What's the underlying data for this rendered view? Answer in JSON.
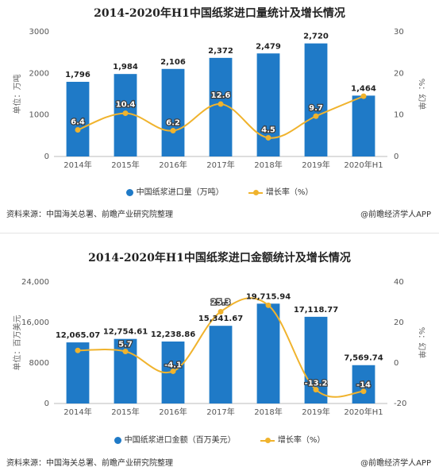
{
  "chart_data": [
    {
      "type": "bar+line",
      "title": "2014-2020年H1中国纸浆进口量统计及增长情况",
      "categories": [
        "2014年",
        "2015年",
        "2016年",
        "2017年",
        "2018年",
        "2019年",
        "2020年H1"
      ],
      "ylabel": "单位：万吨",
      "y2label": "%：幻单",
      "ylim": [
        0,
        3000
      ],
      "yticks": [
        "0",
        "1000",
        "2000",
        "3000"
      ],
      "y2lim": [
        0,
        30
      ],
      "y2ticks": [
        "0",
        "10",
        "20",
        "30"
      ],
      "series": [
        {
          "name": "中国纸浆进口量（万吨）",
          "type": "bar",
          "color": "#1f7ac7",
          "values": [
            1796,
            1984,
            2106,
            2372,
            2479,
            2720,
            1464
          ],
          "labels": [
            "1,796",
            "1,984",
            "2,106",
            "2,372",
            "2,479",
            "2,720",
            "1,464"
          ]
        },
        {
          "name": "增长率（%）",
          "type": "line",
          "axis": "right",
          "color": "#f0b32d",
          "x_indices": [
            0,
            1,
            2,
            3,
            4,
            5,
            6
          ],
          "values": [
            6.4,
            10.4,
            6.2,
            12.6,
            4.5,
            9.7,
            14.5
          ],
          "labels": [
            "6.4",
            "10.4",
            "6.2",
            "12.6",
            "4.5",
            "9.7",
            ""
          ]
        }
      ],
      "legend": "bottom",
      "grid": false
    },
    {
      "type": "bar+line",
      "title": "2014-2020年H1中国纸浆进口金额统计及增长情况",
      "categories": [
        "2014年",
        "2015年",
        "2016年",
        "2017年",
        "2018年",
        "2019年",
        "2020年H1"
      ],
      "ylabel": "单位：百万美元",
      "y2label": "%：幻单",
      "ylim": [
        0,
        24000
      ],
      "yticks": [
        "0",
        "8000",
        "16,000",
        "24,000"
      ],
      "y2lim": [
        -20,
        40
      ],
      "y2ticks": [
        "-20",
        "0",
        "20",
        "40"
      ],
      "series": [
        {
          "name": "中国纸浆进口金额（百万美元）",
          "type": "bar",
          "color": "#1f7ac7",
          "values": [
            12065.07,
            12754.61,
            12238.86,
            15341.67,
            19715.94,
            17118.77,
            7569.74
          ],
          "labels": [
            "12,065.07",
            "12,754.61",
            "12,238.86",
            "15,341.67",
            "19,715.94",
            "17,118.77",
            "7,569.74"
          ]
        },
        {
          "name": "增长率（%）",
          "type": "line",
          "axis": "right",
          "color": "#f0b32d",
          "x_indices": [
            0,
            1,
            2,
            3,
            4,
            5,
            6
          ],
          "values": [
            6.2,
            5.7,
            -4.1,
            25.3,
            28.5,
            -13.2,
            -14
          ],
          "labels": [
            "",
            "5.7",
            "-4.1",
            "25.3",
            "",
            "-13.2",
            "-14"
          ]
        }
      ],
      "legend": "bottom",
      "grid": false
    }
  ],
  "footer": {
    "source1": "资料来源：中国海关总署、前瞻产业研究院整理",
    "credit1": "@前瞻经济学人APP",
    "source2": "资料来源：中国海关总署、前瞻产业研究院整理",
    "credit2": "@前瞻经济学人APP"
  }
}
